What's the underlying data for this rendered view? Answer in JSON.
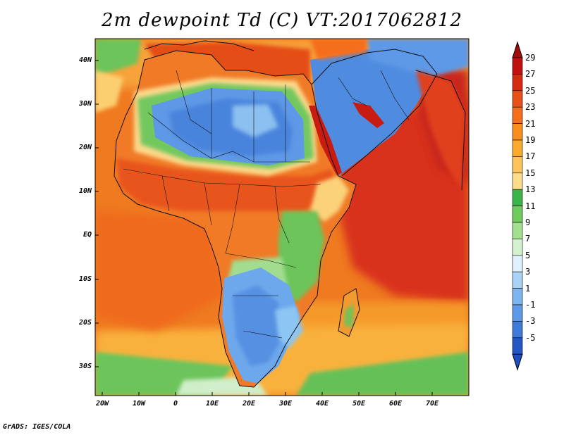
{
  "title": "2m dewpoint Td (C) VT:2017062812",
  "credit": "GrADS: IGES/COLA",
  "lat_labels": [
    "40N",
    "30N",
    "20N",
    "10N",
    "EQ",
    "10S",
    "20S",
    "30S"
  ],
  "lon_labels": [
    "20W",
    "10W",
    "0",
    "10E",
    "20E",
    "30E",
    "40E",
    "50E",
    "60E",
    "70E"
  ],
  "colorbar": {
    "labels": [
      "29",
      "27",
      "25",
      "23",
      "21",
      "19",
      "17",
      "15",
      "13",
      "11",
      "9",
      "7",
      "5",
      "3",
      "1",
      "-1",
      "-3",
      "-5"
    ],
    "colors": [
      "#c01010",
      "#d62a10",
      "#e8501a",
      "#f46e1c",
      "#f98e1e",
      "#fbaa2f",
      "#fcc45a",
      "#fddc8a",
      "#3bb44a",
      "#6fcb5c",
      "#a2e08f",
      "#d4f2d0",
      "#dff2fb",
      "#a8d3f5",
      "#7db6ee",
      "#5d99e6",
      "#3f7ad8",
      "#2257c4"
    ]
  },
  "colors": {
    "ocean_warm": "#ea5a1c",
    "ocean_mid": "#f5891f",
    "ocean_cool": "#7cc86a",
    "desert_dry": "#5e9ae8",
    "land_humid": "#f07222"
  }
}
